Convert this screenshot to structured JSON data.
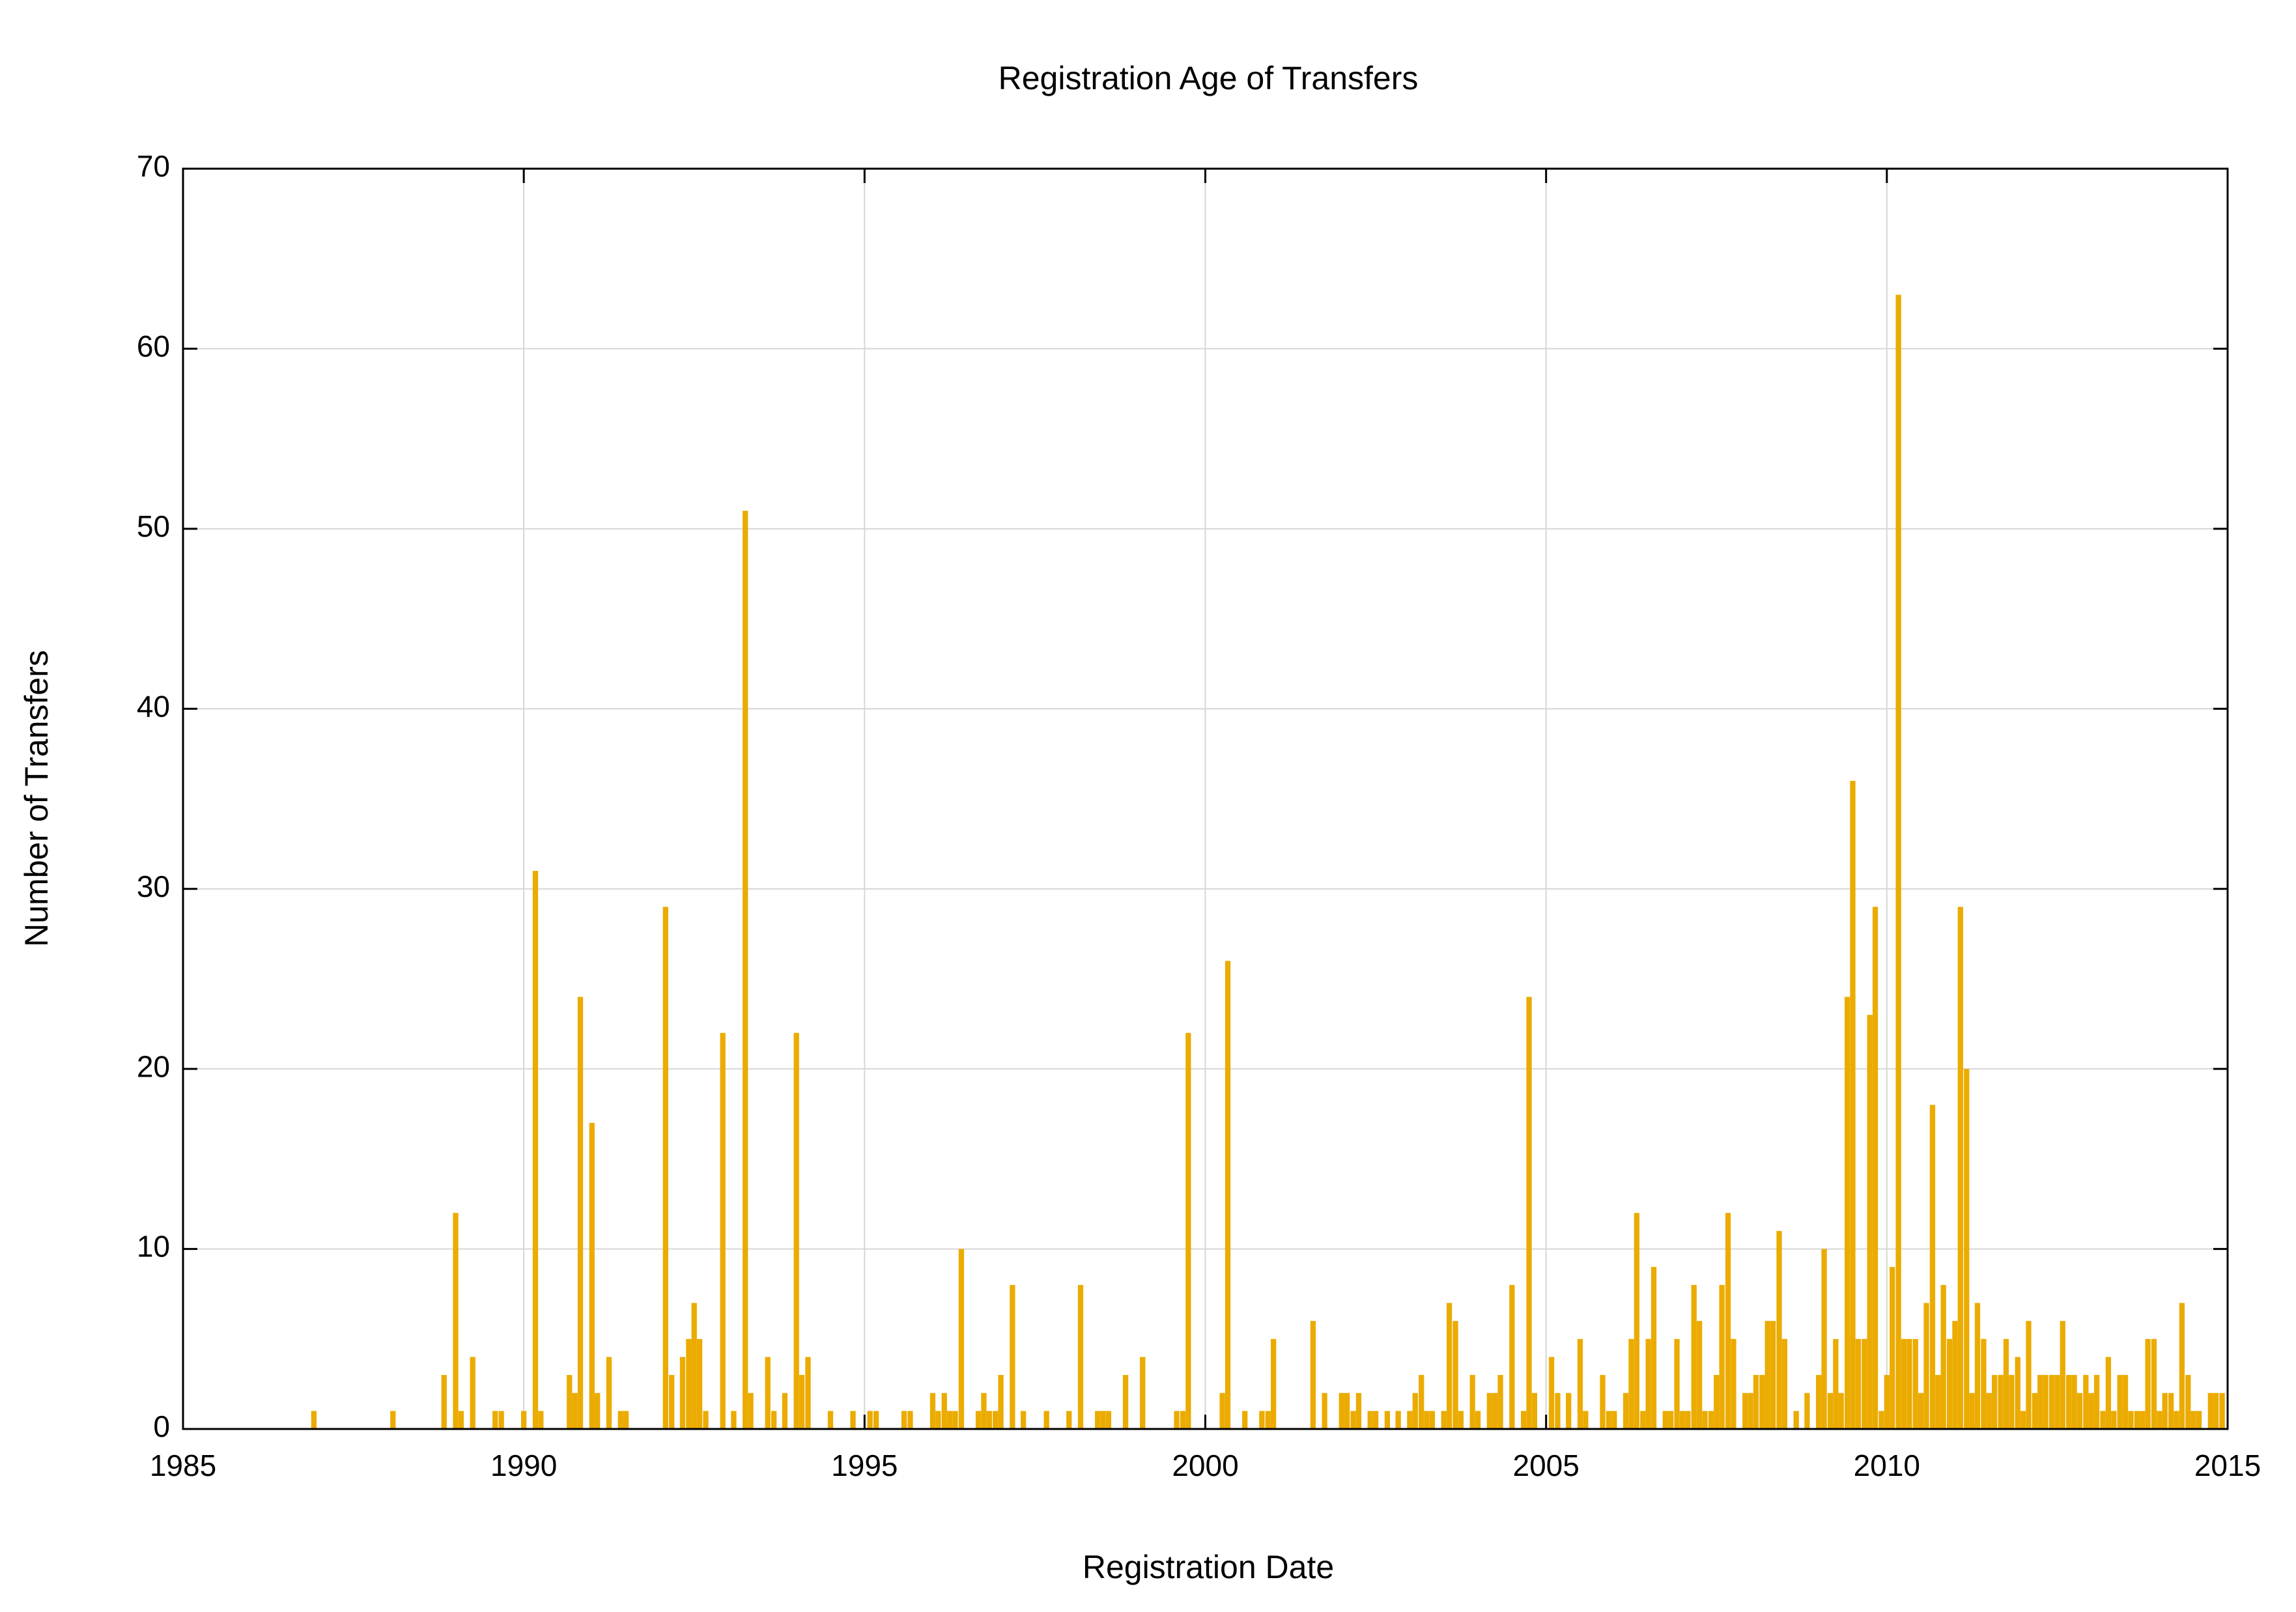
{
  "chart_data": {
    "type": "bar",
    "title": "Registration Age of Transfers",
    "xlabel": "Registration Date",
    "ylabel": "Number of Transfers",
    "xlim": [
      1985,
      2015
    ],
    "xticks": [
      1985,
      1990,
      1995,
      2000,
      2005,
      2010,
      2015
    ],
    "ylim": [
      0,
      70
    ],
    "yticks": [
      0,
      10,
      20,
      30,
      40,
      50,
      60,
      70
    ],
    "grid": true,
    "series": [
      {
        "color": "#ebab00",
        "x": [
          1986.92,
          1988.08,
          1988.83,
          1989.0,
          1989.08,
          1989.25,
          1989.58,
          1989.67,
          1990.0,
          1990.17,
          1990.25,
          1990.67,
          1990.75,
          1990.83,
          1991.0,
          1991.08,
          1991.25,
          1991.42,
          1991.5,
          1992.08,
          1992.17,
          1992.33,
          1992.42,
          1992.5,
          1992.58,
          1992.67,
          1992.92,
          1993.08,
          1993.25,
          1993.33,
          1993.58,
          1993.67,
          1993.83,
          1994.0,
          1994.08,
          1994.17,
          1994.5,
          1994.83,
          1995.08,
          1995.17,
          1995.58,
          1995.67,
          1996.0,
          1996.08,
          1996.17,
          1996.25,
          1996.33,
          1996.42,
          1996.67,
          1996.75,
          1996.83,
          1996.92,
          1997.0,
          1997.17,
          1997.33,
          1997.67,
          1998.0,
          1998.17,
          1998.42,
          1998.5,
          1998.58,
          1998.83,
          1999.08,
          1999.58,
          1999.67,
          1999.75,
          2000.25,
          2000.33,
          2000.58,
          2000.83,
          2000.92,
          2001.0,
          2001.58,
          2001.75,
          2002.0,
          2002.08,
          2002.17,
          2002.25,
          2002.42,
          2002.5,
          2002.67,
          2002.83,
          2003.0,
          2003.08,
          2003.17,
          2003.25,
          2003.33,
          2003.5,
          2003.58,
          2003.67,
          2003.75,
          2003.92,
          2004.0,
          2004.17,
          2004.25,
          2004.33,
          2004.5,
          2004.67,
          2004.75,
          2004.83,
          2005.08,
          2005.17,
          2005.33,
          2005.5,
          2005.58,
          2005.83,
          2005.92,
          2006.0,
          2006.17,
          2006.25,
          2006.33,
          2006.42,
          2006.5,
          2006.58,
          2006.75,
          2006.83,
          2006.92,
          2007.0,
          2007.08,
          2007.17,
          2007.25,
          2007.33,
          2007.42,
          2007.5,
          2007.58,
          2007.67,
          2007.75,
          2007.92,
          2008.0,
          2008.08,
          2008.17,
          2008.25,
          2008.33,
          2008.42,
          2008.5,
          2008.67,
          2008.83,
          2009.0,
          2009.08,
          2009.17,
          2009.25,
          2009.33,
          2009.42,
          2009.5,
          2009.58,
          2009.67,
          2009.75,
          2009.83,
          2009.92,
          2010.0,
          2010.08,
          2010.17,
          2010.25,
          2010.33,
          2010.42,
          2010.5,
          2010.58,
          2010.67,
          2010.75,
          2010.83,
          2010.92,
          2011.0,
          2011.08,
          2011.17,
          2011.25,
          2011.33,
          2011.42,
          2011.5,
          2011.58,
          2011.67,
          2011.75,
          2011.83,
          2011.92,
          2012.0,
          2012.08,
          2012.17,
          2012.25,
          2012.33,
          2012.42,
          2012.5,
          2012.58,
          2012.67,
          2012.75,
          2012.83,
          2012.92,
          2013.0,
          2013.08,
          2013.17,
          2013.25,
          2013.33,
          2013.42,
          2013.5,
          2013.58,
          2013.67,
          2013.75,
          2013.83,
          2013.92,
          2014.0,
          2014.08,
          2014.17,
          2014.25,
          2014.33,
          2014.42,
          2014.5,
          2014.58,
          2014.75,
          2014.83,
          2014.92
        ],
        "values": [
          1,
          1,
          3,
          12,
          1,
          4,
          1,
          1,
          1,
          31,
          1,
          3,
          2,
          24,
          17,
          2,
          4,
          1,
          1,
          29,
          3,
          4,
          5,
          7,
          5,
          1,
          22,
          1,
          51,
          2,
          4,
          1,
          2,
          22,
          3,
          4,
          1,
          1,
          1,
          1,
          1,
          1,
          2,
          1,
          2,
          1,
          1,
          10,
          1,
          2,
          1,
          1,
          3,
          8,
          1,
          1,
          1,
          8,
          1,
          1,
          1,
          3,
          4,
          1,
          1,
          22,
          2,
          26,
          1,
          1,
          1,
          5,
          6,
          2,
          2,
          2,
          1,
          2,
          1,
          1,
          1,
          1,
          1,
          2,
          3,
          1,
          1,
          1,
          7,
          6,
          1,
          3,
          1,
          2,
          2,
          3,
          8,
          1,
          24,
          2,
          4,
          2,
          2,
          5,
          1,
          3,
          1,
          1,
          2,
          5,
          12,
          1,
          5,
          9,
          1,
          1,
          5,
          1,
          1,
          8,
          6,
          1,
          1,
          3,
          8,
          12,
          5,
          2,
          2,
          3,
          3,
          6,
          6,
          11,
          5,
          1,
          2,
          3,
          10,
          2,
          5,
          2,
          24,
          36,
          5,
          5,
          23,
          29,
          1,
          3,
          9,
          63,
          5,
          5,
          5,
          2,
          7,
          18,
          3,
          8,
          5,
          6,
          29,
          20,
          2,
          7,
          5,
          2,
          3,
          3,
          5,
          3,
          4,
          1,
          6,
          2,
          3,
          3,
          3,
          3,
          6,
          3,
          3,
          2,
          3,
          2,
          3,
          1,
          4,
          1,
          3,
          3,
          1,
          1,
          1,
          5,
          5,
          1,
          2,
          2,
          1,
          7,
          3,
          1,
          1,
          2,
          2,
          2
        ]
      }
    ]
  }
}
